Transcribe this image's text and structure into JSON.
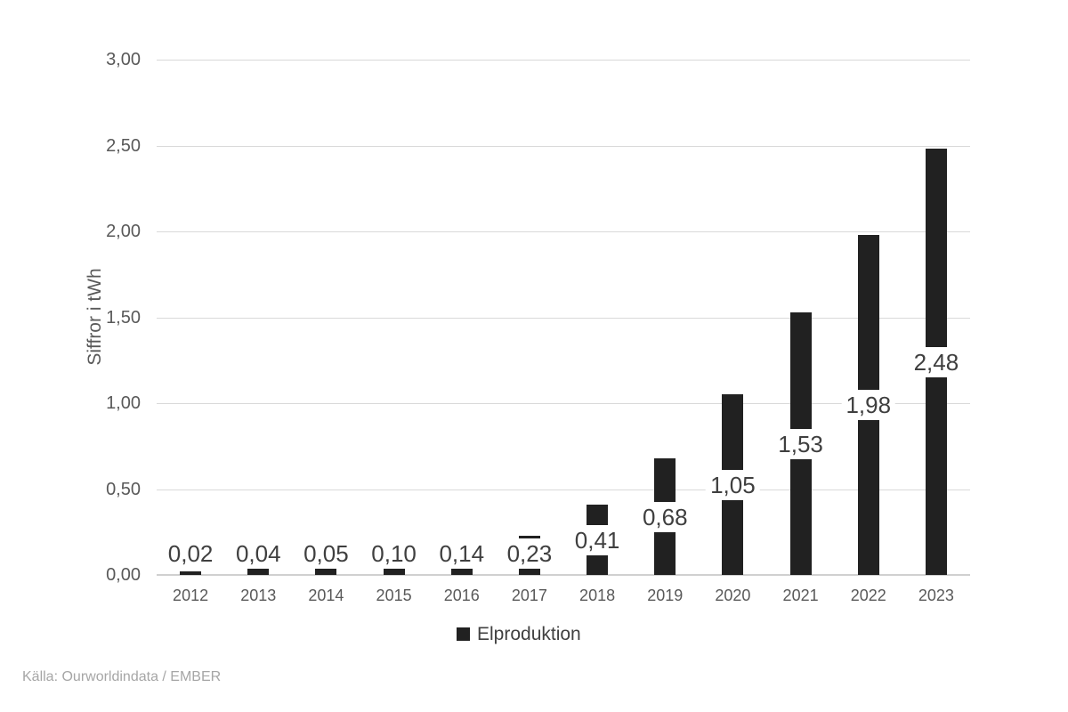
{
  "chart_data": {
    "type": "bar",
    "title": "",
    "categories": [
      "2012",
      "2013",
      "2014",
      "2015",
      "2016",
      "2017",
      "2018",
      "2019",
      "2020",
      "2021",
      "2022",
      "2023"
    ],
    "values": [
      0.02,
      0.04,
      0.05,
      0.1,
      0.14,
      0.23,
      0.41,
      0.68,
      1.05,
      1.53,
      1.98,
      2.48
    ],
    "value_labels": [
      "0,02",
      "0,04",
      "0,05",
      "0,10",
      "0,14",
      "0,23",
      "0,41",
      "0,68",
      "1,05",
      "1,53",
      "1,98",
      "2,48"
    ],
    "series": [
      {
        "name": "Elproduktion"
      }
    ],
    "xlabel": "",
    "ylabel": "Siffror i tWh",
    "ylim": [
      0,
      3.0
    ],
    "yticks": [
      {
        "v": 0.0,
        "label": "0,00"
      },
      {
        "v": 0.5,
        "label": "0,50"
      },
      {
        "v": 1.0,
        "label": "1,00"
      },
      {
        "v": 1.5,
        "label": "1,50"
      },
      {
        "v": 2.0,
        "label": "2,00"
      },
      {
        "v": 2.5,
        "label": "2,50"
      },
      {
        "v": 3.0,
        "label": "3,00"
      }
    ],
    "grid": true,
    "legend_position": "bottom",
    "data_label_position": "center-with-white-background"
  },
  "legend": {
    "label": "Elproduktion"
  },
  "source": {
    "text": "Källa: Ourworldindata / EMBER"
  },
  "colors": {
    "bar": "#212121",
    "gridline": "#d9d9d9",
    "axis_line": "#d0d0d0",
    "tick_text": "#595959",
    "data_label_text": "#3f3f3f",
    "legend_text": "#404040",
    "source_text": "#a6a6a6",
    "background": "#ffffff"
  }
}
